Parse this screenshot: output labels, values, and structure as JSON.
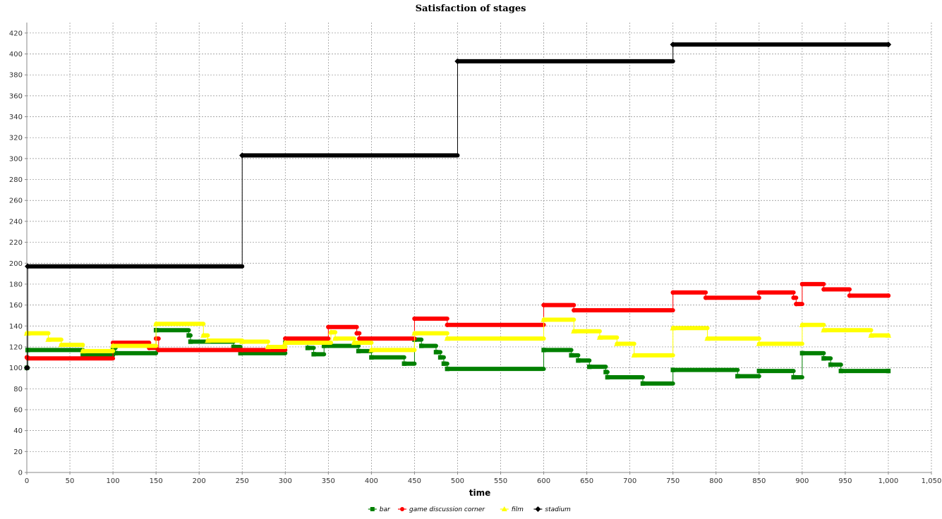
{
  "chart_data": {
    "type": "line",
    "title": "Satisfaction of stages",
    "xlabel": "time",
    "ylabel": "",
    "xlim": [
      0,
      1050
    ],
    "ylim": [
      0,
      430
    ],
    "x_ticks": [
      0,
      50,
      100,
      150,
      200,
      250,
      300,
      350,
      400,
      450,
      500,
      550,
      600,
      650,
      700,
      750,
      800,
      850,
      900,
      950,
      1000,
      1050
    ],
    "x_tick_labels": [
      "0",
      "50",
      "100",
      "150",
      "200",
      "250",
      "300",
      "350",
      "400",
      "450",
      "500",
      "550",
      "600",
      "650",
      "700",
      "750",
      "800",
      "850",
      "900",
      "950",
      "1,000",
      "1,050"
    ],
    "y_ticks": [
      0,
      20,
      40,
      60,
      80,
      100,
      120,
      140,
      160,
      180,
      200,
      220,
      240,
      260,
      280,
      300,
      320,
      340,
      360,
      380,
      400,
      420
    ],
    "y_tick_labels": [
      "0",
      "20",
      "40",
      "60",
      "80",
      "100",
      "120",
      "140",
      "160",
      "180",
      "200",
      "220",
      "240",
      "260",
      "280",
      "300",
      "320",
      "340",
      "360",
      "380",
      "400",
      "420"
    ],
    "grid": true,
    "legend_position": "bottom-center",
    "series": [
      {
        "name": "bar",
        "color": "#008000",
        "marker": "square",
        "x": [
          0,
          1,
          65,
          100,
          103,
          150,
          188,
          190,
          240,
          248,
          300,
          326,
          333,
          345,
          385,
          400,
          438,
          450,
          458,
          475,
          480,
          484,
          488,
          600,
          632,
          640,
          653,
          672,
          674,
          715,
          750,
          825,
          850,
          890,
          900,
          925,
          933,
          945,
          1000
        ],
        "values": [
          100,
          117,
          112,
          119,
          114,
          136,
          131,
          125,
          120,
          114,
          124,
          119,
          113,
          121,
          116,
          110,
          104,
          127,
          121,
          115,
          110,
          104,
          99,
          117,
          112,
          107,
          101,
          96,
          91,
          85,
          98,
          92,
          97,
          91,
          114,
          109,
          103,
          97,
          97
        ]
      },
      {
        "name": "game discussion corner",
        "color": "#ff0000",
        "marker": "circle",
        "x": [
          0,
          1,
          100,
          142,
          150,
          153,
          250,
          300,
          350,
          383,
          386,
          450,
          488,
          600,
          635,
          750,
          788,
          850,
          890,
          893,
          900,
          925,
          955,
          1000
        ],
        "values": [
          110,
          109,
          124,
          119,
          128,
          117,
          117,
          128,
          139,
          133,
          128,
          147,
          141,
          160,
          155,
          172,
          167,
          172,
          167,
          161,
          180,
          175,
          169,
          169
        ]
      },
      {
        "name": "film",
        "color": "#ffff00",
        "marker": "triangle",
        "x": [
          0,
          1,
          25,
          40,
          65,
          100,
          150,
          205,
          210,
          250,
          280,
          300,
          353,
          358,
          380,
          400,
          450,
          488,
          600,
          635,
          665,
          685,
          705,
          750,
          790,
          850,
          900,
          925,
          980,
          1000
        ],
        "values": [
          133,
          133,
          127,
          122,
          116,
          121,
          142,
          131,
          126,
          125,
          120,
          124,
          134,
          128,
          124,
          117,
          133,
          128,
          146,
          135,
          129,
          123,
          112,
          138,
          128,
          123,
          141,
          136,
          131,
          131
        ]
      },
      {
        "name": "stadium",
        "color": "#000000",
        "marker": "diamond",
        "x": [
          0,
          1,
          250,
          500,
          750,
          1000
        ],
        "values": [
          100,
          197,
          303,
          393,
          409,
          409
        ]
      }
    ]
  }
}
